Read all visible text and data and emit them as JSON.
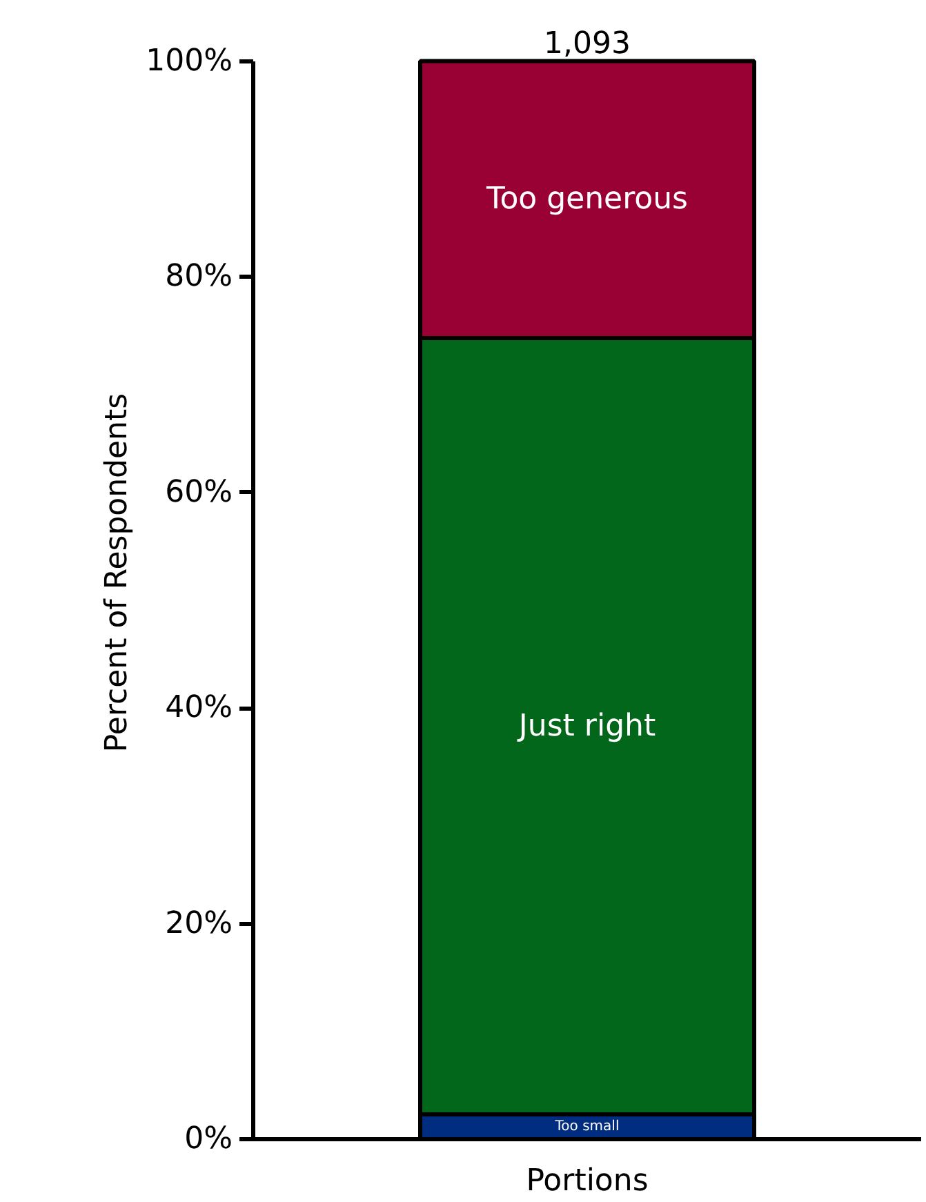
{
  "chart_data": {
    "type": "bar",
    "stacked": true,
    "ylabel": "Percent of Respondents",
    "categories": [
      "Portions"
    ],
    "series": [
      {
        "name": "Too small",
        "color": "#002d7f",
        "values": [
          2.3
        ]
      },
      {
        "name": "Just right",
        "color": "#02661b",
        "values": [
          72.0
        ]
      },
      {
        "name": "Too generous",
        "color": "#990033",
        "values": [
          25.7
        ]
      }
    ],
    "annotations": [
      {
        "text": "1,093",
        "x": "Portions",
        "y": 100
      }
    ],
    "ylim": [
      0,
      100
    ],
    "yticks": [
      {
        "value": 0,
        "label": "0%"
      },
      {
        "value": 20,
        "label": "20%"
      },
      {
        "value": 40,
        "label": "40%"
      },
      {
        "value": 60,
        "label": "60%"
      },
      {
        "value": 80,
        "label": "80%"
      },
      {
        "value": 100,
        "label": "100%"
      }
    ],
    "grid": false
  }
}
